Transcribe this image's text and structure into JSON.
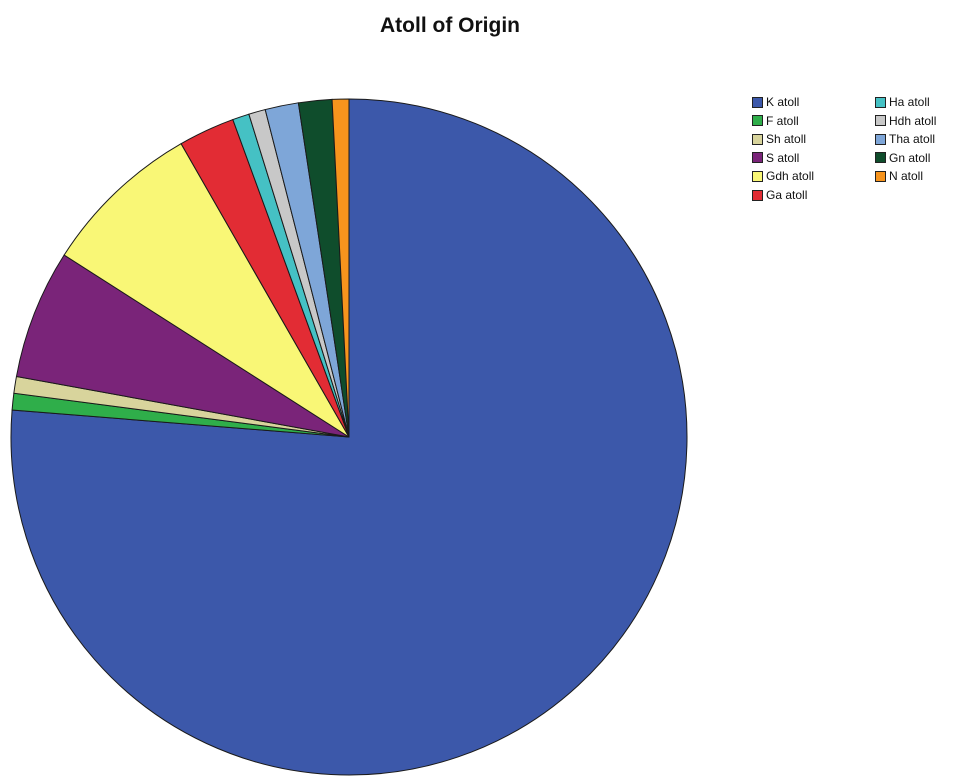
{
  "chart_data": {
    "type": "pie",
    "title": "Atoll of Origin",
    "legend_position": "top-right",
    "slices": [
      {
        "label": "K atoll",
        "value": 76.5,
        "color": "#3c58aa"
      },
      {
        "label": "F atoll",
        "value": 0.8,
        "color": "#2fae4a"
      },
      {
        "label": "Sh atoll",
        "value": 0.8,
        "color": "#d8d49c"
      },
      {
        "label": "S atoll",
        "value": 6.2,
        "color": "#7a2479"
      },
      {
        "label": "Gdh atoll",
        "value": 7.7,
        "color": "#f9f776"
      },
      {
        "label": "Ga atoll",
        "value": 2.7,
        "color": "#e22c34"
      },
      {
        "label": "Ha atoll",
        "value": 0.8,
        "color": "#45c1c4"
      },
      {
        "label": "Hdh atoll",
        "value": 0.8,
        "color": "#c8c8c8"
      },
      {
        "label": "Tha atoll",
        "value": 1.6,
        "color": "#7ea6d8"
      },
      {
        "label": "Gn atoll",
        "value": 1.6,
        "color": "#0f4d2c"
      },
      {
        "label": "N atoll",
        "value": 0.8,
        "color": "#f7941d"
      }
    ]
  }
}
